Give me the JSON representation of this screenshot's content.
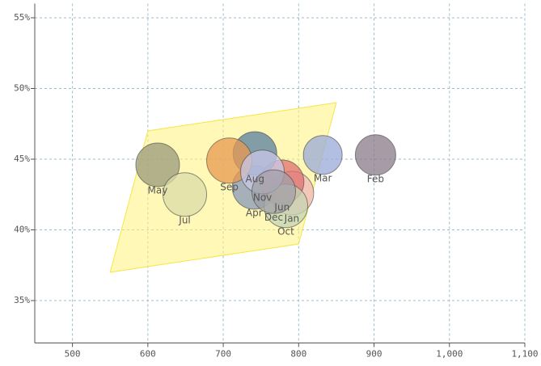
{
  "chart_data": {
    "type": "bubble",
    "labels": [
      "Jan",
      "Feb",
      "Mar",
      "Apr",
      "May",
      "Jun",
      "Jul",
      "Aug",
      "Sep",
      "Oct",
      "Nov",
      "Dec"
    ],
    "x": [
      791,
      902,
      832,
      741,
      613,
      778,
      649,
      742,
      708,
      783,
      752,
      767
    ],
    "y": [
      42.6,
      45.3,
      45.3,
      43.0,
      44.6,
      43.4,
      42.5,
      45.4,
      44.9,
      41.7,
      44.1,
      42.7
    ],
    "sizes": [
      729,
      625,
      576,
      729,
      729,
      729,
      729,
      729,
      784,
      729,
      729,
      729
    ],
    "colors": [
      "#f0b8b8",
      "#8a7a88",
      "#9aaad8",
      "#8898b8",
      "#9a9a7a",
      "#e07070",
      "#dcdca8",
      "#5a7fa0",
      "#e89a50",
      "#c4d4b4",
      "#c8c8e8",
      "#a0a0a8"
    ],
    "region": {
      "x": [
        550,
        600,
        850,
        800
      ],
      "y": [
        37,
        47,
        49,
        39
      ],
      "color": "#fff27a"
    },
    "xlim": [
      450,
      1100
    ],
    "ylim": [
      32,
      56
    ],
    "xticks": [
      500,
      600,
      700,
      800,
      900,
      {
        "value": 1000,
        "label": "1,000"
      },
      {
        "value": 1100,
        "label": "1,100"
      }
    ],
    "yticks": [
      {
        "value": 35,
        "label": "35%"
      },
      {
        "value": 40,
        "label": "40%"
      },
      {
        "value": 45,
        "label": "45%"
      },
      {
        "value": 50,
        "label": "50%"
      },
      {
        "value": 55,
        "label": "55%"
      }
    ],
    "grid": true
  }
}
